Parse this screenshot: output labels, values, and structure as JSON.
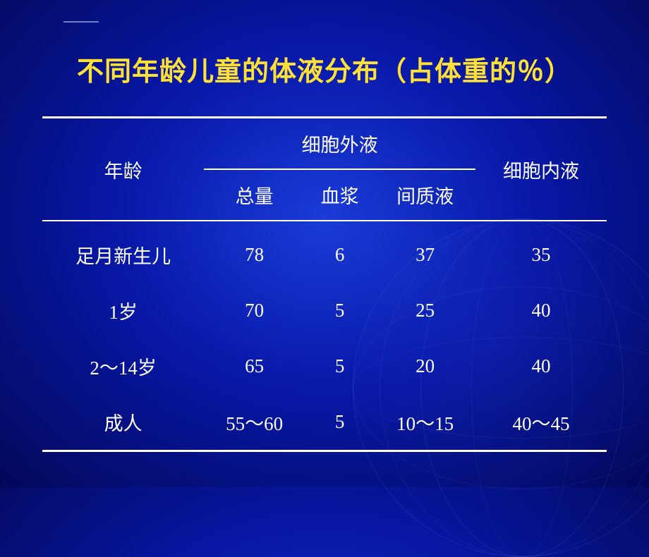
{
  "title": "不同年龄儿童的体液分布（占体重的％）",
  "header": {
    "age": "年龄",
    "ecf_group": "细胞外液",
    "ecf_total": "总量",
    "ecf_plasma": "血浆",
    "ecf_interstitial": "间质液",
    "icf": "细胞内液"
  },
  "rows": [
    {
      "age": "足月新生儿",
      "total": "78",
      "plasma": "6",
      "interstitial": "37",
      "icf": "35"
    },
    {
      "age": "1岁",
      "total": "70",
      "plasma": "5",
      "interstitial": "25",
      "icf": "40"
    },
    {
      "age": "2～14岁",
      "total": "65",
      "plasma": "5",
      "interstitial": "20",
      "icf": "40"
    },
    {
      "age": "成人",
      "total": "55～60",
      "plasma": "5",
      "interstitial": "10～15",
      "icf": "40～45"
    }
  ],
  "colors": {
    "title": "#ffe135",
    "text": "#ffffff",
    "border": "#ffffff",
    "bg_center": "#1a3cd8",
    "bg_edge": "#020858"
  }
}
